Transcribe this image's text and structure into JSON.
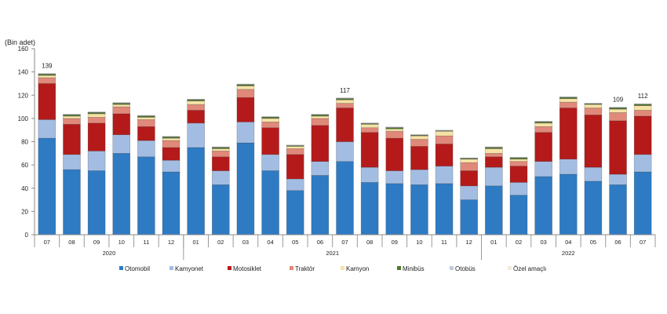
{
  "chart_data": {
    "type": "bar",
    "stacked": true,
    "ylabel": "(Bin adet)",
    "ylim": [
      0,
      160
    ],
    "yticks": [
      0,
      20,
      40,
      60,
      80,
      100,
      120,
      140,
      160
    ],
    "grid": false,
    "legend_position": "bottom",
    "categories": [
      "07",
      "08",
      "09",
      "10",
      "11",
      "12",
      "01",
      "02",
      "03",
      "04",
      "05",
      "06",
      "07",
      "08",
      "09",
      "10",
      "11",
      "12",
      "01",
      "02",
      "03",
      "04",
      "05",
      "06",
      "07"
    ],
    "years": [
      {
        "label": "2020",
        "from": 0,
        "to": 5
      },
      {
        "label": "2021",
        "from": 6,
        "to": 17
      },
      {
        "label": "2022",
        "from": 18,
        "to": 24
      }
    ],
    "annotations": [
      {
        "index": 0,
        "text": "139"
      },
      {
        "index": 12,
        "text": "117"
      },
      {
        "index": 23,
        "text": "109"
      },
      {
        "index": 24,
        "text": "112"
      }
    ],
    "series": [
      {
        "name": "Otomobil",
        "color": "#2e7bc4",
        "values": [
          83,
          56,
          55,
          70,
          67,
          54,
          75,
          43,
          79,
          55,
          38,
          51,
          63,
          45,
          44,
          43,
          44,
          30,
          42,
          34,
          50,
          52,
          46,
          43,
          54
        ]
      },
      {
        "name": "Kamyonet",
        "color": "#a3bde2",
        "values": [
          16,
          13,
          17,
          16,
          14,
          10,
          21,
          12,
          18,
          14,
          10,
          12,
          17,
          13,
          11,
          13,
          15,
          12,
          16,
          11,
          13,
          13,
          12,
          9,
          15
        ]
      },
      {
        "name": "Motosiklet",
        "color": "#b51a1a",
        "values": [
          31,
          26,
          24,
          18,
          12,
          11,
          11,
          12,
          21,
          23,
          21,
          31,
          29,
          30,
          28,
          20,
          19,
          13,
          9,
          14,
          25,
          44,
          45,
          46,
          33
        ]
      },
      {
        "name": "Traktör",
        "color": "#e0897a",
        "values": [
          5,
          5,
          5,
          6,
          6,
          6,
          5,
          5,
          7,
          5,
          5,
          6,
          4,
          4,
          6,
          6,
          7,
          7,
          3,
          4,
          5,
          5,
          6,
          7,
          5
        ]
      },
      {
        "name": "Kamyon",
        "color": "#f7e2a6",
        "values": [
          2,
          2,
          3,
          2,
          2,
          2,
          3,
          2,
          3,
          3,
          2,
          2,
          3,
          3,
          2,
          3,
          4,
          3,
          4,
          2,
          3,
          3,
          3,
          3,
          4
        ]
      },
      {
        "name": "Minibüs",
        "color": "#4f7a2c",
        "values": [
          1,
          1,
          1,
          1,
          1,
          1,
          1,
          1,
          1,
          1,
          0.5,
          1,
          1,
          0.5,
          1,
          0.5,
          0.3,
          0.5,
          1,
          1,
          1,
          1,
          0.5,
          1,
          1
        ]
      },
      {
        "name": "Otobüs",
        "color": "#c3cbda",
        "values": [
          0.3,
          0.3,
          0.3,
          0.3,
          0.3,
          0.3,
          0.3,
          0.3,
          0.3,
          0.3,
          0.3,
          0.3,
          0.3,
          0.3,
          0.3,
          0.3,
          0.3,
          0.3,
          0.3,
          0.3,
          0.3,
          0.3,
          0.3,
          0.3,
          0.3
        ]
      },
      {
        "name": "Özel amaçlı",
        "color": "#f2ebdd",
        "values": [
          0.3,
          0.3,
          0.3,
          0.3,
          0.3,
          0.3,
          0.3,
          0.3,
          0.3,
          0.3,
          0.3,
          0.3,
          0.3,
          0.3,
          0.3,
          0.3,
          0.3,
          0.3,
          0.3,
          0.3,
          0.3,
          0.3,
          0.3,
          0.3,
          0.3
        ]
      }
    ]
  }
}
